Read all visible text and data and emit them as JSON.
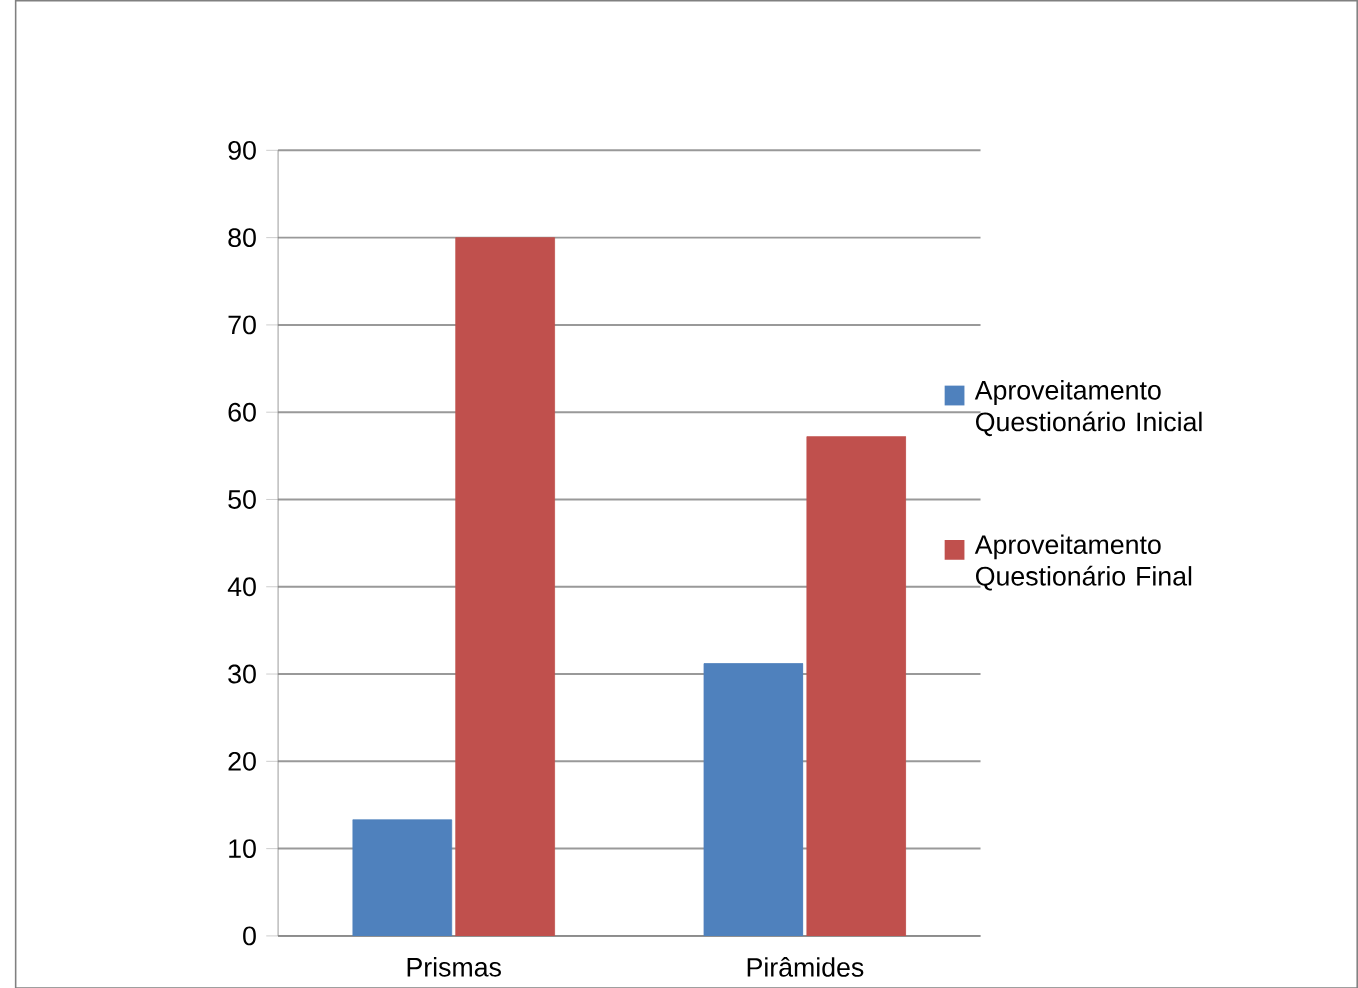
{
  "chart_data": {
    "type": "bar",
    "categories": [
      "Prismas",
      "Pirâmides"
    ],
    "series": [
      {
        "name": "Aproveitamento Questionário Inicial",
        "color": "#4f81bd",
        "values": [
          13.3,
          31.2
        ]
      },
      {
        "name": "Aproveitamento Questionário Final",
        "color": "#c0504d",
        "values": [
          80,
          57.2
        ]
      }
    ],
    "ylim": [
      0,
      90
    ],
    "yticks": [
      0,
      10,
      20,
      30,
      40,
      50,
      60,
      70,
      80,
      90
    ],
    "grid": "y",
    "legend": "right"
  }
}
